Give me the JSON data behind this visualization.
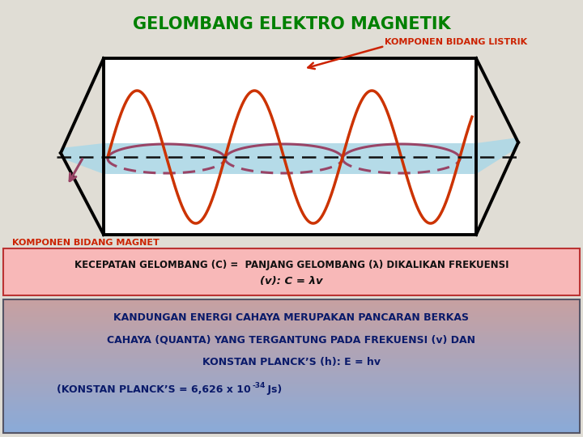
{
  "title": "GELOMBANG ELEKTRO MAGNETIK",
  "title_color": "#008000",
  "bg_color": "#E0DDD5",
  "label_electric": "KOMPONEN BIDANG LISTRIK",
  "label_electric_color": "#CC2200",
  "label_magnetic": "KOMPONEN BIDANG MAGNET",
  "label_magnetic_color": "#CC2200",
  "label_wavelength": "PANJANG GELOMBANG(λ)",
  "label_wavelength_color": "#111111",
  "box1_bg": "#F8B8B8",
  "box1_border": "#CC0000",
  "box1_text_line1": "KECEPATAN GELOMBANG (C) =  PANJANG GELOMBANG (λ) DIKALIKAN FREKUENSI",
  "box1_text_line2": "(v): C = λv",
  "box1_text_color": "#111111",
  "box2_bg_top": "#8AAAD8",
  "box2_bg_bottom": "#C8A0A0",
  "box2_text_line1": "KANDUNGAN ENERGI CAHAYA MERUPAKAN PANCARAN BERKAS",
  "box2_text_line2": "CAHAYA (QUANTA) YANG TERGANTUNG PADA FREKUENSI (v) DAN",
  "box2_text_line3": "KONSTAN PLANCK’S (h): E = hv",
  "box2_text_line4": "(KONSTAN PLANCK’S = 6,626 x 10",
  "box2_text_suffix": " Js)",
  "box2_superscript": "-34",
  "box2_text_color": "#0A1A6A",
  "plane_color": "#ADD8E6",
  "wave_e_color": "#CC3300",
  "wave_b_color": "#994466",
  "dashed_color": "#111111"
}
